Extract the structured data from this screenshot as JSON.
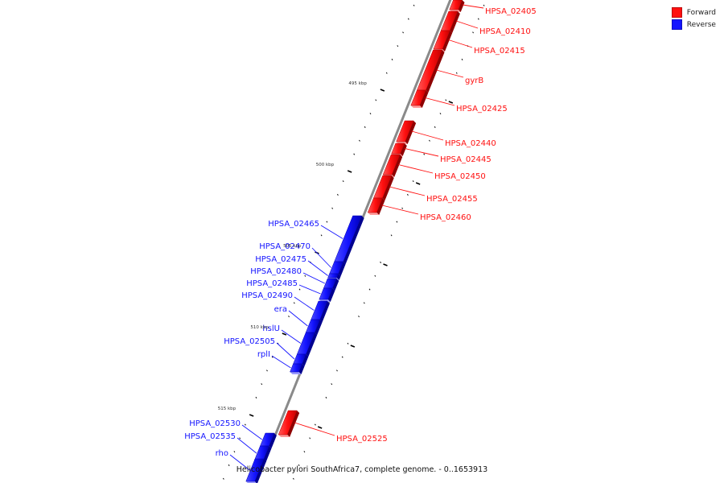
{
  "colors": {
    "forward": "#ff1010",
    "reverse": "#1414ff",
    "backbone": "#8a8a8a",
    "tick": "#000000"
  },
  "legend": [
    {
      "label": "Forward",
      "color": "#ff1010"
    },
    {
      "label": "Reverse",
      "color": "#1414ff"
    }
  ],
  "caption": "Helicobacter pylori SouthAfrica7, complete genome. - 0..1653913",
  "scale_labels": [
    "495 kbp",
    "500 kbp",
    "505 kbp",
    "510 kbp",
    "515 kbp"
  ],
  "genes": [
    {
      "name": "HPSA_02405",
      "strand": "forward"
    },
    {
      "name": "HPSA_02410",
      "strand": "forward"
    },
    {
      "name": "HPSA_02415",
      "strand": "forward"
    },
    {
      "name": "gyrB",
      "strand": "forward"
    },
    {
      "name": "HPSA_02425",
      "strand": "forward"
    },
    {
      "name": "HPSA_02440",
      "strand": "forward"
    },
    {
      "name": "HPSA_02445",
      "strand": "forward"
    },
    {
      "name": "HPSA_02450",
      "strand": "forward"
    },
    {
      "name": "HPSA_02455",
      "strand": "forward"
    },
    {
      "name": "HPSA_02460",
      "strand": "forward"
    },
    {
      "name": "HPSA_02465",
      "strand": "reverse"
    },
    {
      "name": "HPSA_02470",
      "strand": "reverse"
    },
    {
      "name": "HPSA_02475",
      "strand": "reverse"
    },
    {
      "name": "HPSA_02480",
      "strand": "reverse"
    },
    {
      "name": "HPSA_02485",
      "strand": "reverse"
    },
    {
      "name": "HPSA_02490",
      "strand": "reverse"
    },
    {
      "name": "era",
      "strand": "reverse"
    },
    {
      "name": "hslU",
      "strand": "reverse"
    },
    {
      "name": "HPSA_02505",
      "strand": "reverse"
    },
    {
      "name": "rplI",
      "strand": "reverse"
    },
    {
      "name": "HPSA_02525",
      "strand": "forward"
    },
    {
      "name": "HPSA_02530",
      "strand": "reverse"
    },
    {
      "name": "HPSA_02535",
      "strand": "reverse"
    },
    {
      "name": "rho",
      "strand": "reverse"
    }
  ]
}
